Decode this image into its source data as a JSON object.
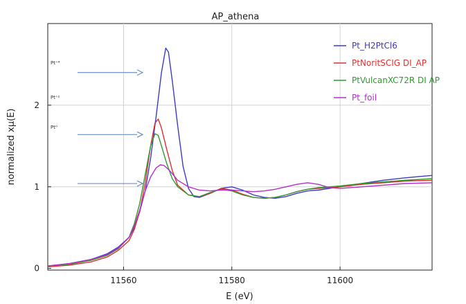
{
  "chart_data": {
    "type": "line",
    "title": "AP_athena",
    "xlabel": "E (eV)",
    "ylabel": "normalized xμ(E)",
    "xlim": [
      11546,
      11617
    ],
    "ylim": [
      -0.02,
      3.0
    ],
    "xticks": [
      11560,
      11580,
      11600
    ],
    "yticks": [
      0,
      1,
      2
    ],
    "grid": true,
    "legend_position": "top-right",
    "series": [
      {
        "name": "Pt_H2PtCl6",
        "color": "#3b3bc8",
        "x": [
          11546,
          11550,
          11554,
          11557,
          11559,
          11561,
          11562,
          11563,
          11564,
          11565,
          11566,
          11567,
          11567.8,
          11568.3,
          11569,
          11570,
          11571,
          11572,
          11573,
          11574,
          11576,
          11578,
          11580,
          11582,
          11584,
          11586,
          11588,
          11590,
          11592,
          11594,
          11596,
          11598,
          11600,
          11604,
          11608,
          11612,
          11617
        ],
        "y": [
          0.03,
          0.06,
          0.11,
          0.18,
          0.26,
          0.38,
          0.5,
          0.7,
          0.95,
          1.35,
          1.85,
          2.4,
          2.7,
          2.65,
          2.3,
          1.75,
          1.25,
          0.98,
          0.88,
          0.87,
          0.92,
          0.98,
          1.0,
          0.96,
          0.9,
          0.87,
          0.86,
          0.88,
          0.92,
          0.95,
          0.96,
          0.98,
          1.0,
          1.04,
          1.08,
          1.11,
          1.14
        ]
      },
      {
        "name": "PtNoritSCIG DI_AP",
        "color": "#e03030",
        "x": [
          11546,
          11550,
          11554,
          11557,
          11559,
          11561,
          11562,
          11563,
          11564,
          11565,
          11565.8,
          11566.4,
          11567,
          11568,
          11569,
          11570,
          11572,
          11574,
          11576,
          11578,
          11580,
          11582,
          11584,
          11586,
          11588,
          11590,
          11592,
          11594,
          11596,
          11598,
          11600,
          11604,
          11608,
          11612,
          11617
        ],
        "y": [
          0.02,
          0.04,
          0.08,
          0.14,
          0.22,
          0.34,
          0.48,
          0.7,
          1.05,
          1.5,
          1.78,
          1.83,
          1.72,
          1.45,
          1.2,
          1.02,
          0.9,
          0.88,
          0.92,
          0.98,
          0.96,
          0.91,
          0.87,
          0.86,
          0.87,
          0.9,
          0.94,
          0.97,
          0.98,
          0.99,
          1.0,
          1.03,
          1.05,
          1.07,
          1.08
        ]
      },
      {
        "name": "PtVulcanXC72R DI AP",
        "color": "#2e9a2e",
        "x": [
          11546,
          11550,
          11554,
          11557,
          11559,
          11561,
          11562,
          11563,
          11564,
          11565,
          11565.8,
          11566.4,
          11567,
          11568,
          11569,
          11570,
          11572,
          11574,
          11576,
          11578,
          11580,
          11582,
          11584,
          11586,
          11588,
          11590,
          11592,
          11594,
          11596,
          11598,
          11600,
          11604,
          11608,
          11612,
          11617
        ],
        "y": [
          0.03,
          0.05,
          0.1,
          0.16,
          0.24,
          0.38,
          0.55,
          0.8,
          1.15,
          1.5,
          1.65,
          1.63,
          1.5,
          1.28,
          1.1,
          1.0,
          0.9,
          0.88,
          0.93,
          0.97,
          0.95,
          0.9,
          0.87,
          0.86,
          0.87,
          0.9,
          0.94,
          0.97,
          0.99,
          1.0,
          1.01,
          1.04,
          1.06,
          1.08,
          1.1
        ]
      },
      {
        "name": "Pt_foil",
        "color": "#b030c8",
        "x": [
          11546,
          11550,
          11554,
          11557,
          11559,
          11561,
          11562,
          11563,
          11564,
          11565,
          11566,
          11566.8,
          11567.5,
          11568.5,
          11570,
          11572,
          11574,
          11576,
          11578,
          11580,
          11582,
          11584,
          11586,
          11588,
          11590,
          11592,
          11594,
          11596,
          11598,
          11600,
          11604,
          11608,
          11612,
          11617
        ],
        "y": [
          0.03,
          0.06,
          0.11,
          0.17,
          0.25,
          0.38,
          0.52,
          0.72,
          0.95,
          1.12,
          1.23,
          1.27,
          1.26,
          1.2,
          1.08,
          1.0,
          0.96,
          0.95,
          0.96,
          0.96,
          0.95,
          0.94,
          0.95,
          0.97,
          1.0,
          1.03,
          1.05,
          1.03,
          0.99,
          0.98,
          1.0,
          1.02,
          1.04,
          1.05
        ]
      }
    ],
    "annotations": [
      {
        "label": "Pt⁺⁴",
        "arrow_y": 2.4
      },
      {
        "label": "Pt⁺²",
        "arrow_y": null
      },
      {
        "label": "Pt⁰",
        "arrow_y": 1.64
      },
      {
        "label": "",
        "arrow_y": 1.04
      }
    ]
  }
}
